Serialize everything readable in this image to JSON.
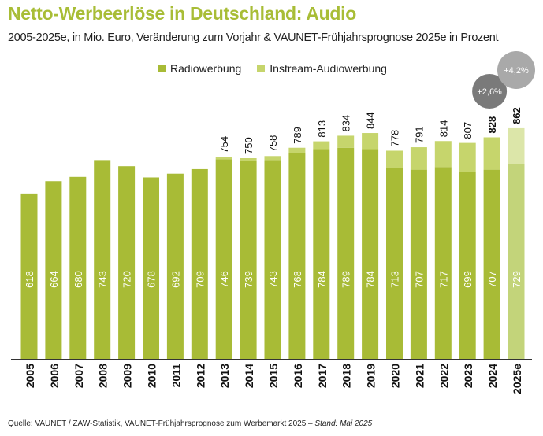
{
  "title": "Netto-Werbeerlöse in Deutschland: Audio",
  "subtitle": "2005-2025e, in Mio. Euro, Veränderung zum Vorjahr & VAUNET-Frühjahrsprognose 2025e in Prozent",
  "source": "Quelle: VAUNET / ZAW-Statistik, VAUNET-Frühjahrsprognose zum Werbemarkt 2025 – ",
  "source_stand": "Stand: Mai 2025",
  "colors": {
    "radio": "#a8bb36",
    "instream": "#c6d56c",
    "radio_forecast": "#c3d47a",
    "instream_forecast": "#dce6a9",
    "title": "#a8bd36"
  },
  "chart_data": {
    "type": "bar",
    "stacked": true,
    "categories": [
      "2005",
      "2006",
      "2007",
      "2008",
      "2009",
      "2010",
      "2011",
      "2012",
      "2013",
      "2014",
      "2015",
      "2016",
      "2017",
      "2018",
      "2019",
      "2020",
      "2021",
      "2022",
      "2023",
      "2024",
      "2025e"
    ],
    "series": [
      {
        "name": "Radiowerbung",
        "values": [
          618,
          664,
          680,
          743,
          720,
          678,
          692,
          709,
          746,
          739,
          743,
          768,
          784,
          789,
          784,
          713,
          707,
          717,
          699,
          707,
          729
        ]
      },
      {
        "name": "Instream-Audiowerbung",
        "values": [
          null,
          null,
          null,
          null,
          null,
          null,
          null,
          null,
          8,
          11,
          15,
          21,
          29,
          45,
          60,
          65,
          84,
          97,
          108,
          121,
          133
        ]
      }
    ],
    "totals": [
      null,
      null,
      null,
      null,
      null,
      null,
      null,
      null,
      754,
      750,
      758,
      789,
      813,
      834,
      844,
      778,
      791,
      814,
      807,
      828,
      862
    ],
    "annotations": [
      {
        "category": "2024",
        "text": "+2,6%"
      },
      {
        "category": "2025e",
        "text": "+4,2%"
      }
    ],
    "legend": "top-center",
    "grid": false,
    "ylim": [
      0,
      900
    ]
  }
}
